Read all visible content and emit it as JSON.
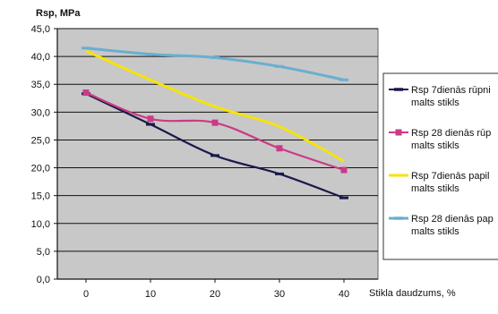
{
  "chart_data": {
    "type": "line",
    "ylabel": "Rsp, MPa",
    "xlabel": "Stikla daudzums, %",
    "x": [
      0,
      10,
      20,
      30,
      40
    ],
    "ylim": [
      0,
      45
    ],
    "yticks": [
      "0,0",
      "5,0",
      "10,0",
      "15,0",
      "20,0",
      "25,0",
      "30,0",
      "35,0",
      "40,0",
      "45,0"
    ],
    "grid": true,
    "plot_background": "#c8c8c8",
    "legend_position": "right",
    "series": [
      {
        "name": "Rsp 7dienās rūpnie malts stikls",
        "legend_lines": [
          "Rsp 7dienās rūpni",
          "malts stikls"
        ],
        "color": "#1a1a4a",
        "marker": "dash",
        "values": [
          33.3,
          27.8,
          22.2,
          18.9,
          14.6
        ]
      },
      {
        "name": "Rsp 28 dienās rūpnie malts stikls",
        "legend_lines": [
          "Rsp 28 dienās rūp",
          "malts stikls"
        ],
        "color": "#cc3a86",
        "marker": "square",
        "values": [
          33.5,
          28.8,
          28.1,
          23.5,
          19.6
        ]
      },
      {
        "name": "Rsp 7dienās papild malts stikls",
        "legend_lines": [
          "Rsp 7dienās papil",
          "malts stikls"
        ],
        "color": "#f5e40a",
        "marker": "none",
        "values": [
          41.0,
          35.8,
          31.0,
          27.4,
          21.2
        ]
      },
      {
        "name": "Rsp 28 dienās papild malts stikls",
        "legend_lines": [
          "Rsp 28 dienās pap",
          "malts stikls"
        ],
        "color": "#6aaed0",
        "marker": "dash",
        "values": [
          41.5,
          40.4,
          39.8,
          38.2,
          35.8
        ]
      }
    ]
  }
}
